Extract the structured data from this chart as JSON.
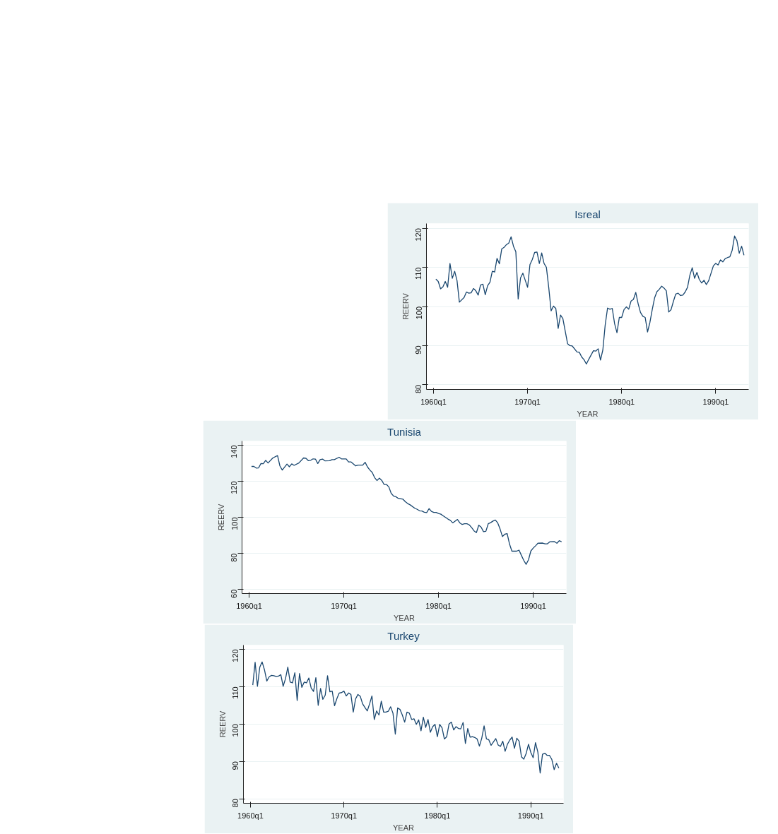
{
  "chart_data": [
    {
      "type": "line",
      "title": "Isreal",
      "xlabel": "YEAR",
      "ylabel": "REERV",
      "grid": "y",
      "xlim": [
        "1959-04",
        "1993-07"
      ],
      "ylim": [
        78.8,
        121.2
      ],
      "xticks": [
        {
          "value": "1960-01",
          "label": "1960q1"
        },
        {
          "value": "1970-01",
          "label": "1970q1"
        },
        {
          "value": "1980-01",
          "label": "1980q1"
        },
        {
          "value": "1990-01",
          "label": "1990q1"
        }
      ],
      "yticks": [
        80,
        90,
        100,
        110,
        120
      ],
      "series": [
        {
          "color": "#1a476f",
          "x": [
            "1960-04",
            "1960-07",
            "1960-10",
            "1961-01",
            "1961-04",
            "1961-07",
            "1961-10",
            "1962-01",
            "1962-04",
            "1962-07",
            "1962-10",
            "1963-04",
            "1963-07",
            "1963-10",
            "1964-01",
            "1964-04",
            "1964-07",
            "1964-10",
            "1965-01",
            "1965-04",
            "1965-07",
            "1965-10",
            "1966-01",
            "1966-04",
            "1966-07",
            "1966-10",
            "1967-01",
            "1967-04",
            "1967-07",
            "1967-10",
            "1968-01",
            "1968-04",
            "1968-07",
            "1968-10",
            "1969-01",
            "1969-04",
            "1969-07",
            "1969-10",
            "1970-01",
            "1970-04",
            "1970-07",
            "1970-10",
            "1971-01",
            "1971-04",
            "1971-07",
            "1971-10",
            "1972-01",
            "1972-04",
            "1972-07",
            "1972-10",
            "1973-01",
            "1973-04",
            "1973-07",
            "1973-10",
            "1974-04",
            "1974-07",
            "1974-10",
            "1975-04",
            "1975-07",
            "1975-10",
            "1976-01",
            "1976-04",
            "1976-07",
            "1977-01",
            "1977-04",
            "1977-07",
            "1977-10",
            "1978-01",
            "1978-04",
            "1978-07",
            "1978-10",
            "1979-01",
            "1979-04",
            "1979-07",
            "1979-10",
            "1980-01",
            "1980-04",
            "1980-07",
            "1980-10",
            "1981-01",
            "1981-04",
            "1981-07",
            "1981-10",
            "1982-01",
            "1982-04",
            "1982-07",
            "1982-10",
            "1983-01",
            "1983-04",
            "1983-07",
            "1983-10",
            "1984-01",
            "1984-04",
            "1984-07",
            "1984-10",
            "1985-01",
            "1985-04",
            "1985-07",
            "1985-10",
            "1986-01",
            "1986-04",
            "1986-07",
            "1986-10",
            "1987-01",
            "1987-04",
            "1987-07",
            "1987-10",
            "1988-01",
            "1988-04",
            "1988-07",
            "1988-10",
            "1989-01",
            "1989-04",
            "1989-07",
            "1989-10",
            "1990-01",
            "1990-04",
            "1990-07",
            "1990-10",
            "1991-01",
            "1991-04",
            "1991-07",
            "1991-10",
            "1992-01",
            "1992-04",
            "1992-07",
            "1992-10",
            "1993-01"
          ],
          "values": [
            107.0,
            106.4,
            104.5,
            105.0,
            106.4,
            104.9,
            111.0,
            107.2,
            109.0,
            106.6,
            101.1,
            102.3,
            103.7,
            103.4,
            103.5,
            104.6,
            104.0,
            102.9,
            105.5,
            105.7,
            103.0,
            105.3,
            106.2,
            109.0,
            108.8,
            112.3,
            110.9,
            114.7,
            115.1,
            115.8,
            116.2,
            117.8,
            115.4,
            114.0,
            101.9,
            107.3,
            108.5,
            106.7,
            104.9,
            110.7,
            112.0,
            113.8,
            113.9,
            111.0,
            113.7,
            111.0,
            110.0,
            104.8,
            98.9,
            100.1,
            99.5,
            94.4,
            97.8,
            96.9,
            90.5,
            90.0,
            89.9,
            88.4,
            88.3,
            87.1,
            86.4,
            85.3,
            86.5,
            88.7,
            88.6,
            89.2,
            86.3,
            88.9,
            95.3,
            99.6,
            99.3,
            99.5,
            95.6,
            93.3,
            97.2,
            97.2,
            99.2,
            99.9,
            99.3,
            101.4,
            101.8,
            103.6,
            100.7,
            98.5,
            97.5,
            97.2,
            93.5,
            95.9,
            99.2,
            102.2,
            103.8,
            104.4,
            105.2,
            104.7,
            104.0,
            98.6,
            99.2,
            101.3,
            103.2,
            103.4,
            102.8,
            102.9,
            103.7,
            104.9,
            108.0,
            109.9,
            107.2,
            108.7,
            106.9,
            106.0,
            106.7,
            105.6,
            106.6,
            108.5,
            110.4,
            111.0,
            110.6,
            111.9,
            111.4,
            112.2,
            112.5,
            112.7,
            114.4,
            118.0,
            116.8,
            113.6,
            115.4,
            113.1
          ]
        }
      ]
    },
    {
      "type": "line",
      "title": "Tunisia",
      "xlabel": "YEAR",
      "ylabel": "REERV",
      "grid": "y",
      "xlim": [
        "1959-04",
        "1993-07"
      ],
      "ylim": [
        57.7,
        142.3
      ],
      "xticks": [
        {
          "value": "1960-01",
          "label": "1960q1"
        },
        {
          "value": "1970-01",
          "label": "1970q1"
        },
        {
          "value": "1980-01",
          "label": "1980q1"
        },
        {
          "value": "1990-01",
          "label": "1990q1"
        }
      ],
      "yticks": [
        60,
        80,
        100,
        120,
        140
      ],
      "series": [
        {
          "color": "#1a476f",
          "x": [
            "1960-04",
            "1960-07",
            "1960-10",
            "1961-01",
            "1961-04",
            "1961-07",
            "1961-10",
            "1962-01",
            "1962-07",
            "1963-01",
            "1963-04",
            "1963-07",
            "1964-01",
            "1964-04",
            "1964-07",
            "1964-10",
            "1965-04",
            "1965-10",
            "1966-01",
            "1966-04",
            "1966-07",
            "1966-10",
            "1967-01",
            "1967-04",
            "1967-07",
            "1967-10",
            "1968-01",
            "1968-07",
            "1968-10",
            "1969-01",
            "1969-07",
            "1969-10",
            "1970-04",
            "1970-07",
            "1970-10",
            "1971-04",
            "1971-07",
            "1972-01",
            "1972-04",
            "1972-07",
            "1972-10",
            "1973-01",
            "1973-04",
            "1973-07",
            "1973-10",
            "1974-01",
            "1974-04",
            "1974-07",
            "1974-10",
            "1975-01",
            "1975-04",
            "1975-07",
            "1975-10",
            "1976-04",
            "1976-07",
            "1976-10",
            "1977-01",
            "1977-07",
            "1977-10",
            "1978-01",
            "1978-04",
            "1978-07",
            "1978-10",
            "1979-01",
            "1979-04",
            "1979-07",
            "1979-10",
            "1980-01",
            "1980-04",
            "1980-07",
            "1981-01",
            "1981-04",
            "1981-07",
            "1982-01",
            "1982-04",
            "1982-07",
            "1982-10",
            "1983-01",
            "1983-04",
            "1983-07",
            "1983-10",
            "1984-01",
            "1984-04",
            "1984-07",
            "1984-10",
            "1985-01",
            "1985-04",
            "1985-07",
            "1985-10",
            "1986-01",
            "1986-04",
            "1986-07",
            "1986-10",
            "1987-01",
            "1987-04",
            "1987-07",
            "1987-10",
            "1988-04",
            "1988-07",
            "1988-10",
            "1989-01",
            "1989-04",
            "1989-07",
            "1989-10",
            "1990-01",
            "1990-04",
            "1990-07",
            "1991-01",
            "1991-04",
            "1991-07",
            "1991-10",
            "1992-04",
            "1992-07",
            "1992-10",
            "1993-01"
          ],
          "values": [
            128.2,
            128.2,
            127.3,
            127.4,
            129.8,
            129.7,
            131.6,
            130.1,
            132.9,
            134.2,
            128.5,
            126.2,
            129.5,
            128.0,
            129.6,
            128.8,
            130.1,
            132.9,
            132.7,
            131.4,
            131.6,
            132.4,
            132.3,
            129.8,
            132.0,
            132.3,
            131.3,
            131.4,
            132.0,
            132.0,
            133.3,
            132.4,
            132.4,
            130.7,
            130.7,
            128.5,
            128.9,
            128.9,
            130.5,
            127.9,
            126.2,
            124.9,
            122.0,
            120.4,
            121.7,
            120.5,
            118.2,
            118.2,
            116.9,
            113.3,
            111.8,
            111.4,
            110.5,
            110.0,
            108.6,
            107.6,
            106.9,
            105.0,
            104.4,
            103.6,
            103.5,
            102.8,
            102.6,
            104.8,
            103.3,
            102.7,
            102.7,
            102.1,
            101.7,
            100.8,
            99.0,
            98.3,
            96.9,
            98.8,
            96.9,
            96.0,
            96.4,
            96.4,
            95.8,
            94.3,
            92.5,
            91.5,
            95.6,
            94.5,
            92.0,
            92.2,
            96.4,
            97.0,
            97.9,
            98.5,
            96.9,
            93.5,
            89.3,
            90.6,
            90.9,
            85.1,
            81.2,
            81.2,
            81.8,
            78.9,
            76.1,
            73.9,
            76.4,
            81.3,
            82.9,
            84.2,
            85.6,
            85.7,
            85.3,
            85.3,
            86.4,
            86.5,
            85.6,
            87.0,
            86.4
          ]
        }
      ]
    },
    {
      "type": "line",
      "title": "Turkey",
      "xlabel": "YEAR",
      "ylabel": "REERV",
      "grid": "y",
      "xlim": [
        "1959-04",
        "1993-07"
      ],
      "ylim": [
        78.8,
        121.1
      ],
      "xticks": [
        {
          "value": "1960-01",
          "label": "1960q1"
        },
        {
          "value": "1970-01",
          "label": "1970q1"
        },
        {
          "value": "1980-01",
          "label": "1980q1"
        },
        {
          "value": "1990-01",
          "label": "1990q1"
        }
      ],
      "yticks": [
        80,
        90,
        100,
        110,
        120
      ],
      "series": [
        {
          "color": "#1a476f",
          "x": [
            "1960-04",
            "1960-07",
            "1960-10",
            "1961-01",
            "1961-04",
            "1961-07",
            "1961-10",
            "1962-01",
            "1962-04",
            "1962-07",
            "1962-10",
            "1963-01",
            "1963-04",
            "1963-07",
            "1963-10",
            "1964-01",
            "1964-04",
            "1964-07",
            "1964-10",
            "1965-01",
            "1965-04",
            "1965-07",
            "1965-10",
            "1966-01",
            "1966-04",
            "1966-07",
            "1966-10",
            "1967-01",
            "1967-04",
            "1967-07",
            "1967-10",
            "1968-01",
            "1968-04",
            "1968-07",
            "1968-10",
            "1969-01",
            "1969-04",
            "1969-07",
            "1969-10",
            "1970-01",
            "1970-04",
            "1970-07",
            "1970-10",
            "1971-01",
            "1971-04",
            "1971-07",
            "1971-10",
            "1972-01",
            "1972-04",
            "1972-07",
            "1972-10",
            "1973-01",
            "1973-04",
            "1973-07",
            "1973-10",
            "1974-01",
            "1974-04",
            "1974-07",
            "1974-10",
            "1975-01",
            "1975-04",
            "1975-07",
            "1975-10",
            "1976-01",
            "1976-04",
            "1976-07",
            "1976-10",
            "1977-01",
            "1977-04",
            "1977-07",
            "1977-10",
            "1978-01",
            "1978-04",
            "1978-07",
            "1978-10",
            "1979-01",
            "1979-04",
            "1979-07",
            "1979-10",
            "1980-01",
            "1980-04",
            "1980-07",
            "1980-10",
            "1981-01",
            "1981-04",
            "1981-07",
            "1981-10",
            "1982-01",
            "1982-04",
            "1982-07",
            "1982-10",
            "1983-01",
            "1983-04",
            "1983-07",
            "1983-10",
            "1984-01",
            "1984-04",
            "1984-07",
            "1984-10",
            "1985-01",
            "1985-04",
            "1985-07",
            "1985-10",
            "1986-01",
            "1986-04",
            "1986-07",
            "1986-10",
            "1987-01",
            "1987-04",
            "1987-07",
            "1987-10",
            "1988-01",
            "1988-04",
            "1988-07",
            "1988-10",
            "1989-01",
            "1989-04",
            "1989-07",
            "1989-10",
            "1990-01",
            "1990-04",
            "1990-07",
            "1990-10",
            "1991-01",
            "1991-04",
            "1991-07",
            "1991-10",
            "1992-01",
            "1992-04",
            "1992-07",
            "1992-10",
            "1993-01"
          ],
          "values": [
            110.4,
            116.5,
            110.1,
            115.2,
            116.6,
            114.5,
            111.5,
            112.6,
            113.0,
            112.9,
            112.7,
            112.8,
            113.2,
            110.1,
            112.1,
            115.2,
            111.2,
            111.0,
            113.7,
            106.3,
            113.5,
            109.8,
            111.2,
            111.0,
            112.3,
            109.6,
            108.7,
            112.4,
            105.0,
            109.5,
            106.6,
            107.7,
            112.9,
            108.6,
            108.8,
            104.9,
            106.8,
            108.3,
            108.4,
            108.8,
            107.5,
            108.3,
            107.9,
            103.2,
            106.7,
            107.9,
            107.4,
            105.4,
            104.4,
            103.5,
            105.4,
            107.5,
            101.2,
            103.5,
            102.4,
            106.1,
            103.2,
            103.2,
            103.4,
            104.6,
            102.9,
            97.3,
            104.3,
            103.9,
            102.4,
            100.5,
            103.2,
            102.9,
            101.2,
            101.4,
            99.9,
            101.1,
            98.2,
            101.8,
            99.1,
            101.2,
            97.8,
            99.3,
            99.9,
            96.6,
            99.9,
            99.0,
            96.0,
            96.6,
            100.0,
            100.5,
            98.4,
            99.3,
            98.8,
            98.7,
            100.4,
            94.8,
            98.8,
            96.5,
            96.6,
            96.4,
            96.0,
            94.1,
            96.2,
            99.5,
            96.0,
            95.8,
            94.3,
            95.2,
            96.1,
            94.4,
            94.0,
            95.4,
            92.7,
            94.6,
            95.7,
            96.5,
            93.5,
            96.2,
            95.4,
            91.2,
            90.6,
            92.1,
            94.6,
            92.4,
            91.0,
            95.0,
            92.5,
            86.9,
            91.9,
            92.2,
            91.6,
            91.6,
            90.5,
            87.8,
            89.5,
            88.2
          ]
        }
      ]
    }
  ]
}
